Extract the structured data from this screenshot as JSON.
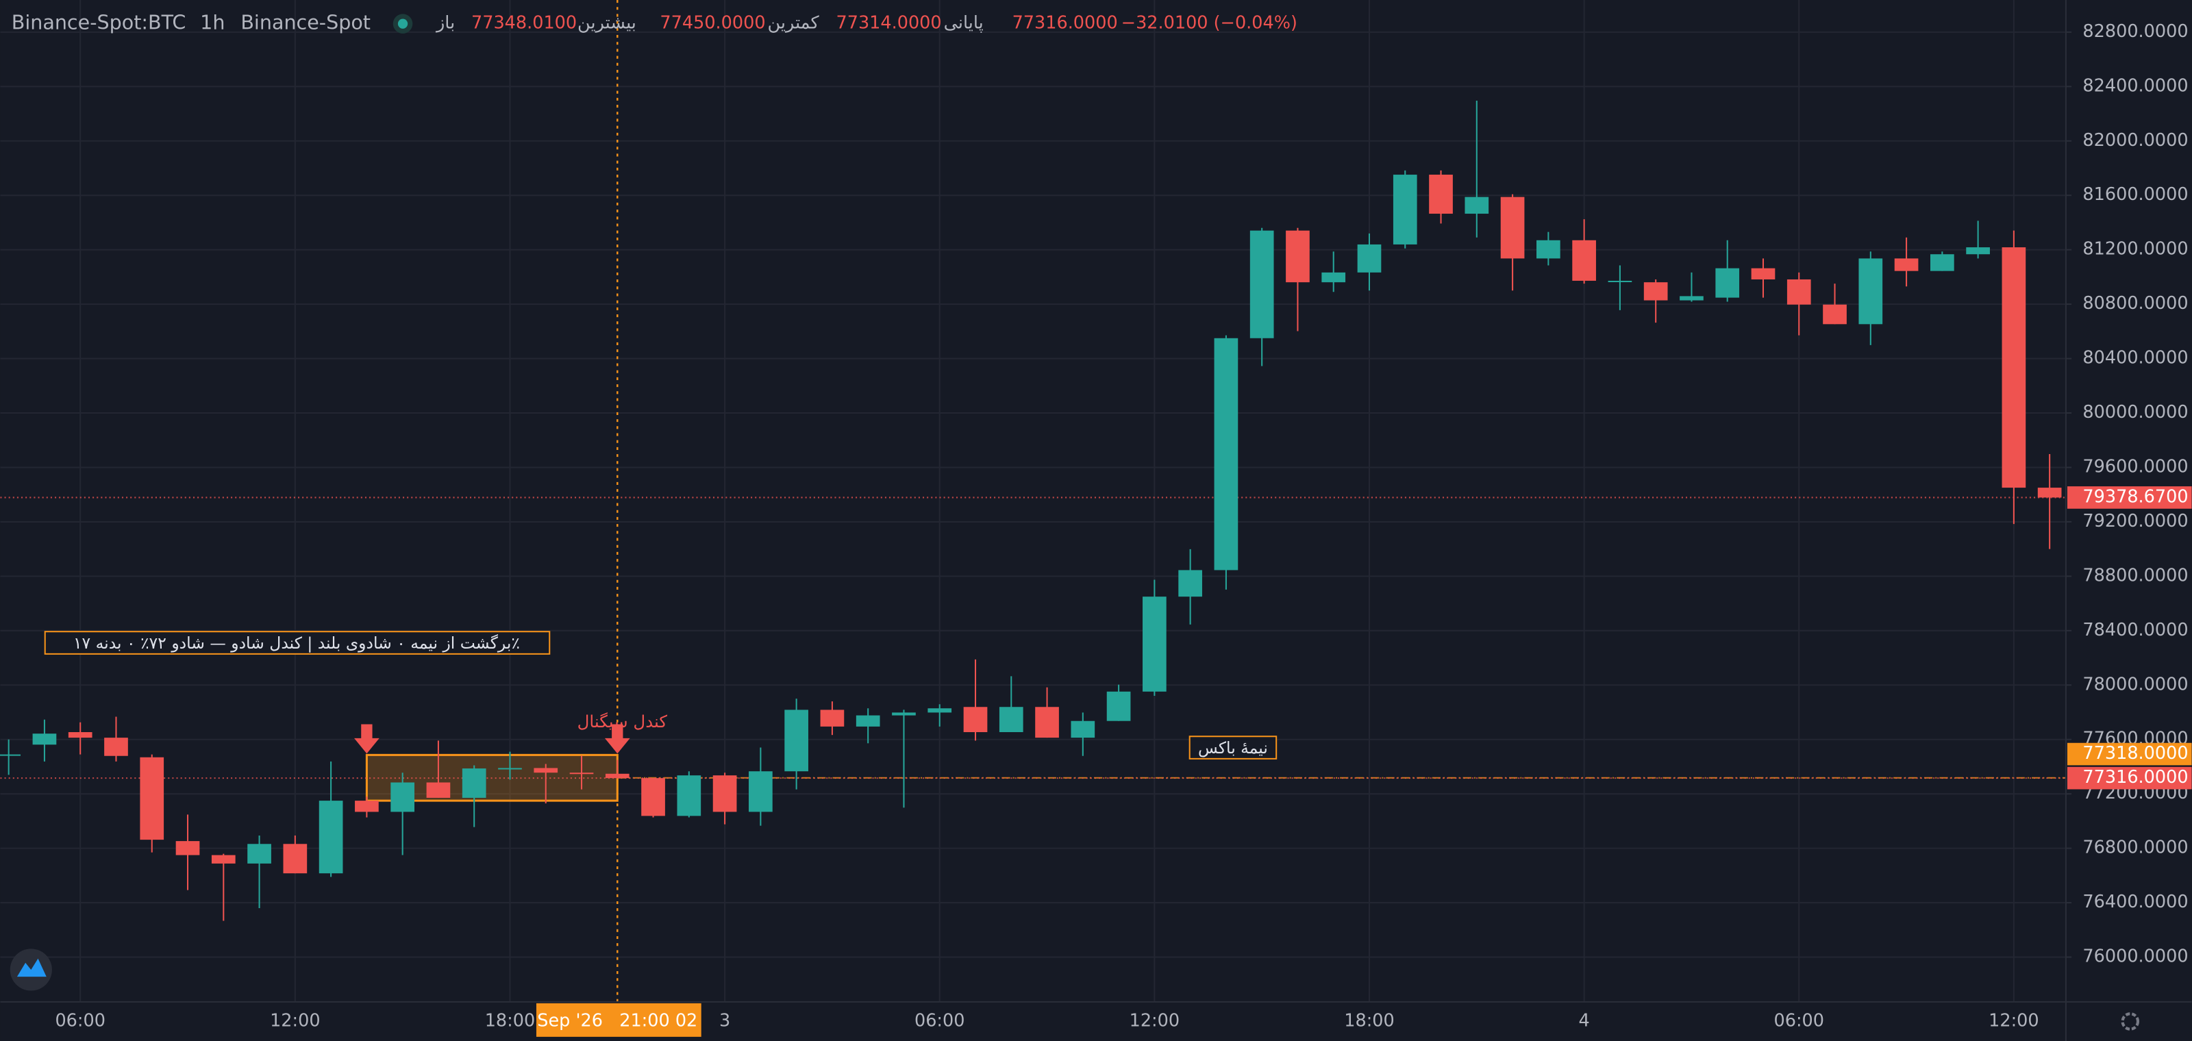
{
  "header": {
    "symbol": "Binance-Spot:BTC",
    "interval": "1h",
    "exchange": "Binance-Spot",
    "open_label": "باز",
    "open": "77348.0100",
    "high_label": "بیشترین",
    "high": "77450.0000",
    "low_label": "کمترین",
    "low": "77314.0000",
    "close_label": "پایانی",
    "close": "77316.0000",
    "change": "−32.0100 (−0.04%)"
  },
  "chart_data": {
    "type": "candlestick",
    "categories": [
      null,
      null,
      "06:00",
      null,
      null,
      null,
      null,
      null,
      "12:00",
      null,
      null,
      null,
      null,
      null,
      "18:00",
      null,
      null,
      null,
      null,
      null,
      "3",
      null,
      null,
      null,
      null,
      null,
      "06:00",
      null,
      null,
      null,
      null,
      null,
      "12:00",
      null,
      null,
      null,
      null,
      null,
      "18:00",
      null,
      null,
      null,
      null,
      null,
      "4",
      null,
      null,
      null,
      null,
      null,
      "06:00",
      null,
      null,
      null,
      null,
      null,
      "12:00",
      null
    ],
    "open": [
      77480,
      77562,
      77654,
      77613,
      77469,
      76853,
      76750,
      76688,
      76832,
      76616,
      77150,
      77068,
      77284,
      77171,
      77387,
      77390,
      77356,
      77348.01,
      77316,
      77038,
      77336,
      77068,
      77366,
      77818,
      77695,
      77777,
      77798,
      77839,
      77654,
      77839,
      77613,
      77736,
      77952,
      78650,
      78845,
      80550,
      81341,
      80961,
      81033,
      81239,
      81752,
      81465,
      81588,
      81136,
      81270,
      80972,
      80961,
      80828,
      80848,
      81064,
      80982,
      80797,
      80653,
      81136,
      81044,
      81167,
      81218,
      79451
    ],
    "high": [
      77600,
      77746,
      77726,
      77767,
      77490,
      77048,
      76760,
      76894,
      76894,
      77438,
      77180,
      77356,
      77592,
      77410,
      77510,
      77420,
      77480,
      77450,
      77316,
      77366,
      77356,
      77541,
      77900,
      77880,
      77829,
      77818,
      77859,
      78188,
      78065,
      77983,
      77798,
      78003,
      78774,
      78999,
      80571,
      81361,
      81361,
      81187,
      81320,
      81783,
      81783,
      82296,
      81608,
      81331,
      81424,
      81085,
      80982,
      81033,
      81270,
      81136,
      81033,
      80951,
      81187,
      81290,
      81187,
      81413,
      81341,
      79698
    ],
    "low": [
      77340,
      77438,
      77490,
      77438,
      76770,
      76493,
      76267,
      76360,
      76616,
      76590,
      77027,
      76750,
      77171,
      76956,
      77305,
      77130,
      77233,
      77314,
      77027,
      77027,
      76976,
      76966,
      77233,
      77633,
      77572,
      77099,
      77695,
      77592,
      77654,
      77613,
      77479,
      77736,
      77921,
      78445,
      78702,
      80345,
      80602,
      80890,
      80900,
      81210,
      81393,
      81290,
      80900,
      81085,
      80951,
      80756,
      80664,
      80818,
      80818,
      80848,
      80571,
      80653,
      80499,
      80930,
      81044,
      81136,
      79184,
      79000
    ],
    "close": [
      77490,
      77643,
      77613,
      77479,
      76863,
      76750,
      76688,
      76832,
      76616,
      77150,
      77068,
      77284,
      77171,
      77387,
      77390,
      77356,
      77348,
      77316,
      77038,
      77336,
      77068,
      77366,
      77818,
      77695,
      77777,
      77798,
      77829,
      77654,
      77839,
      77613,
      77736,
      77952,
      78650,
      78845,
      80550,
      81341,
      80961,
      81033,
      81239,
      81752,
      81465,
      81588,
      81136,
      81270,
      80972,
      80972,
      80828,
      80859,
      81064,
      80982,
      80797,
      80653,
      81136,
      81044,
      81167,
      81218,
      79451,
      79378.67
    ],
    "up_color": "#26a69a",
    "down_color": "#ef5350",
    "ylim": [
      75671,
      83036
    ],
    "yticks": [
      {
        "value": 76000,
        "label": "76000.0000"
      },
      {
        "value": 76400,
        "label": "76400.0000"
      },
      {
        "value": 76800,
        "label": "76800.0000"
      },
      {
        "value": 77200,
        "label": "77200.0000"
      },
      {
        "value": 77600,
        "label": "77600.0000"
      },
      {
        "value": 78000,
        "label": "78000.0000"
      },
      {
        "value": 78400,
        "label": "78400.0000"
      },
      {
        "value": 78800,
        "label": "78800.0000"
      },
      {
        "value": 79200,
        "label": "79200.0000"
      },
      {
        "value": 79600,
        "label": "79600.0000"
      },
      {
        "value": 80000,
        "label": "80000.0000"
      },
      {
        "value": 80400,
        "label": "80400.0000"
      },
      {
        "value": 80800,
        "label": "80800.0000"
      },
      {
        "value": 81200,
        "label": "81200.0000"
      },
      {
        "value": 81600,
        "label": "81600.0000"
      },
      {
        "value": 82000,
        "label": "82000.0000"
      },
      {
        "value": 82400,
        "label": "82400.0000"
      },
      {
        "value": 82800,
        "label": "82800.0000"
      }
    ],
    "grid": true,
    "price_markers": [
      {
        "value": 79378.67,
        "label": "79378.6700",
        "color": "#ef5350"
      },
      {
        "value": 77318,
        "label": "77318.0000",
        "color": "#f7931a"
      },
      {
        "value": 77316,
        "label": "77316.0000",
        "color": "#ef5350"
      }
    ],
    "box": {
      "high": 77486,
      "low": 77150,
      "color": "#f7931a"
    },
    "crosshair_label": "Sep '26   21:00 02",
    "annotations": {
      "pattern": "٪برگشت از نیمه ۰ شادوی بلند | کندل شادو — شادو ۷۲٪ ۰ بدنه ۱۷",
      "signal": "کندل سیگنال",
      "box_mid": "نیمهٔ باکس"
    }
  }
}
